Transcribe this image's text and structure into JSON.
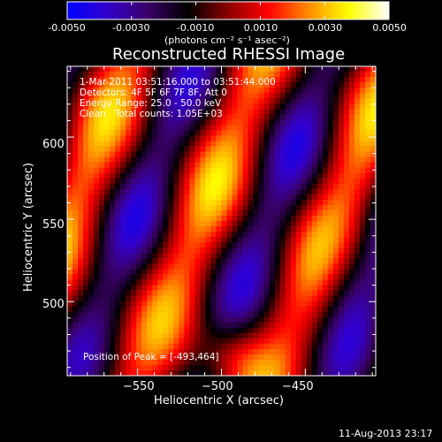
{
  "colorbar": {
    "tick_labels": [
      "-0.0050",
      "-0.0030",
      "-0.0010",
      "0.0010",
      "0.0030",
      "0.0050"
    ],
    "units_label": "(photons cm⁻² s⁻¹ asec⁻²)",
    "range": [
      -0.005,
      0.005
    ],
    "colors": [
      "#0000ff",
      "#3300cc",
      "#3a0066",
      "#000000",
      "#8b0000",
      "#ff0000",
      "#ff8c00",
      "#ffff00",
      "#ffffff"
    ]
  },
  "chart_data": {
    "type": "heatmap",
    "title": "Reconstructed RHESSI Image",
    "xlabel": "Heliocentric X (arcsec)",
    "ylabel": "Heliocentric Y (arcsec)",
    "xlim": [
      -592,
      -408
    ],
    "ylim": [
      455,
      643
    ],
    "x_ticks": [
      -550,
      -500,
      -450
    ],
    "y_ticks": [
      500,
      550,
      600
    ],
    "x_tick_labels": [
      "−550",
      "−500",
      "−450"
    ],
    "y_tick_labels": [
      "500",
      "550",
      "600"
    ],
    "annotations": [
      "1-Mar-2011 03:51:16.000 to 03:51:44.000",
      "Detectors: 4F 5F 6F 7F 8F, Att 0",
      "Energy Range: 25.0 - 50.0 keV",
      "Clean   Total counts: 1.05E+03"
    ],
    "peak_label": "Position of Peak = [-493,464]"
  },
  "footer": {
    "timestamp": "11-Aug-2013 23:17"
  }
}
